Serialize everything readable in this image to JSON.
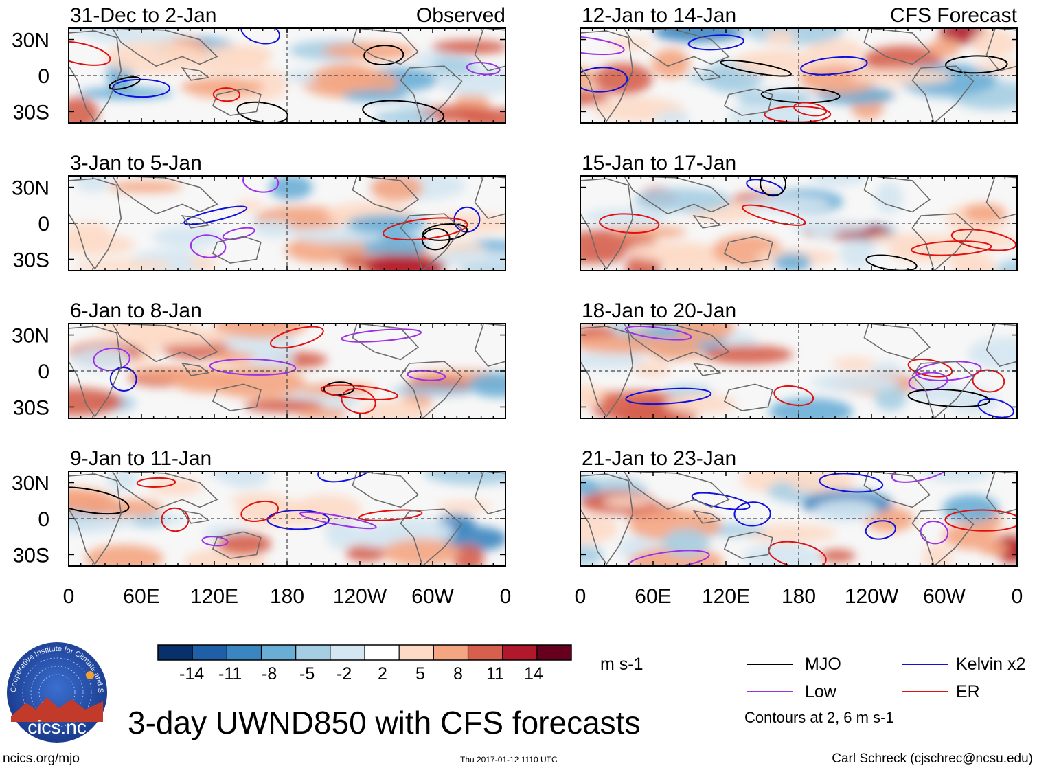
{
  "chart_data": {
    "type": "heatmap",
    "title": "3-day UWND850 with CFS forecasts",
    "variable": "UWND850",
    "units": "m s-1",
    "columns": [
      {
        "label": "Observed",
        "panels": [
          "31-Dec to 2-Jan",
          "3-Jan to 5-Jan",
          "6-Jan to 8-Jan",
          "9-Jan to 11-Jan"
        ]
      },
      {
        "label": "CFS Forecast",
        "panels": [
          "12-Jan to 14-Jan",
          "15-Jan to 17-Jan",
          "18-Jan to 20-Jan",
          "21-Jan to 23-Jan"
        ]
      }
    ],
    "y_tick_labels": [
      "30N",
      "0",
      "30S"
    ],
    "x_tick_labels": [
      "0",
      "60E",
      "120E",
      "180",
      "120W",
      "60W",
      "0"
    ],
    "colorbar_levels": [
      "-14",
      "-11",
      "-8",
      "-5",
      "-2",
      "2",
      "5",
      "8",
      "11",
      "14"
    ],
    "colorbar_colors": [
      "#08306b",
      "#1f5fa8",
      "#3a86c0",
      "#6aaed6",
      "#a6cee3",
      "#d4e6f1",
      "#ffffff",
      "#fddac6",
      "#f4a582",
      "#d6604d",
      "#b2182b",
      "#67001f"
    ],
    "contour_legend": [
      {
        "name": "MJO",
        "color": "#000000"
      },
      {
        "name": "Kelvin x2",
        "color": "#1010dd"
      },
      {
        "name": "Low",
        "color": "#9b30e8"
      },
      {
        "name": "ER",
        "color": "#e01010"
      }
    ],
    "contour_note": "Contours at 2, 6 m s-1"
  },
  "logo": {
    "text": "cics.nc",
    "ring_text": "Cooperative Institute for Climate and Satellites"
  },
  "footer": {
    "left": "ncics.org/mjo",
    "center": "Thu 2017-01-12 1110 UTC",
    "right": "Carl Schreck (cjschrec@ncsu.edu)"
  }
}
